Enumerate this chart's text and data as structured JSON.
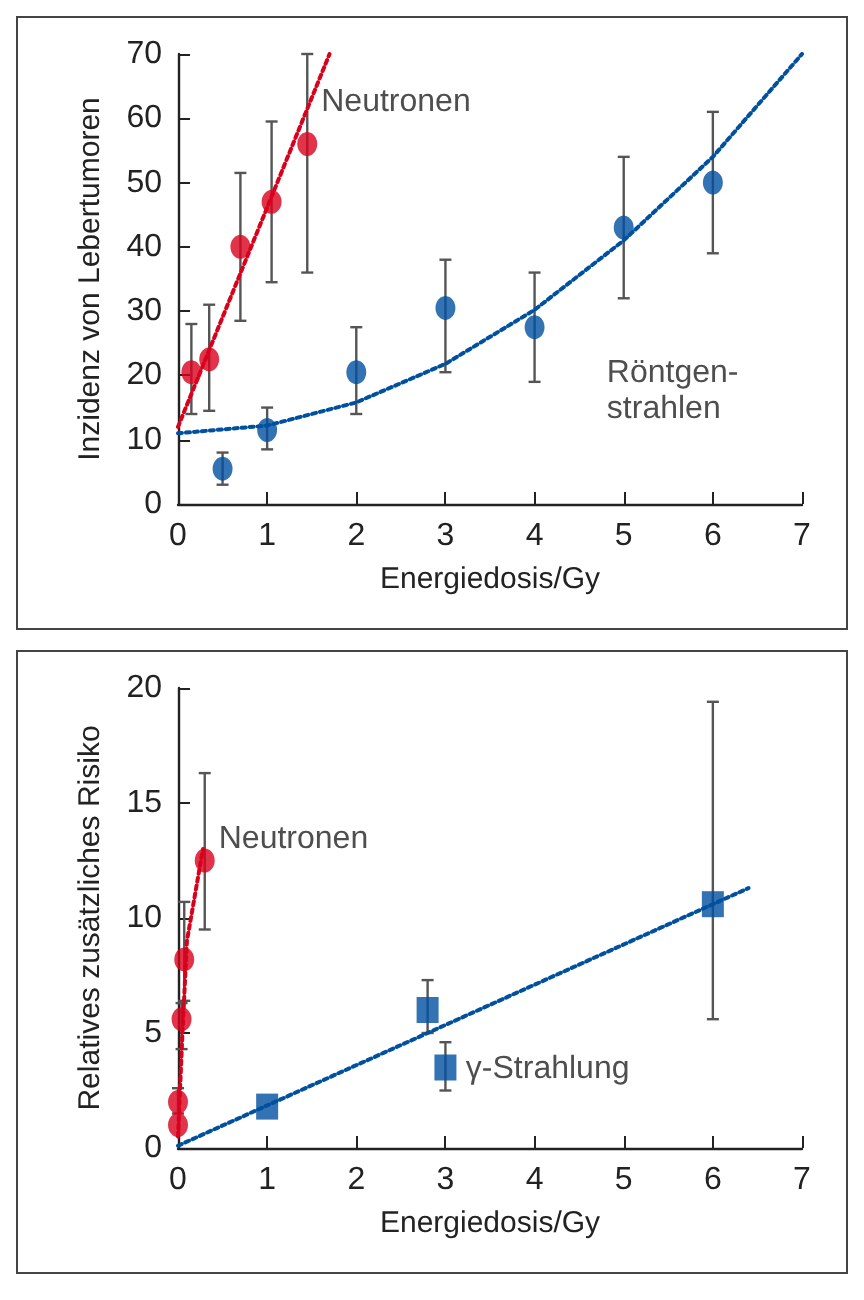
{
  "chart_data": [
    {
      "type": "scatter",
      "xlabel": "Energiedosis/Gy",
      "ylabel": "Inzidenz von Lebertumoren",
      "xlim": [
        0,
        7
      ],
      "ylim": [
        0,
        70
      ],
      "xticks": [
        0,
        1,
        2,
        3,
        4,
        5,
        6,
        7
      ],
      "yticks": [
        0,
        10,
        20,
        30,
        40,
        50,
        60,
        70
      ],
      "series": [
        {
          "type": "scatter",
          "name": "Neutronen",
          "color": "#d9001b",
          "marker": "circle",
          "x": [
            0.15,
            0.35,
            0.7,
            1.05,
            1.45
          ],
          "values": [
            20.5,
            22.5,
            40,
            47,
            56
          ],
          "errors": [
            [
              14,
              28
            ],
            [
              14.5,
              31
            ],
            [
              28.5,
              51.5
            ],
            [
              34.5,
              59.5
            ],
            [
              36,
              70
            ]
          ]
        },
        {
          "type": "scatter",
          "name": "Röntgen-\nstrahlen",
          "color": "#0050a0",
          "marker": "circle",
          "x": [
            0.5,
            1,
            2,
            3,
            4,
            5,
            6
          ],
          "values": [
            5.5,
            11.5,
            20.5,
            30.5,
            27.5,
            43,
            50
          ],
          "errors": [
            [
              3,
              8
            ],
            [
              8.5,
              15
            ],
            [
              14,
              27.5
            ],
            [
              20.5,
              38
            ],
            [
              19,
              36
            ],
            [
              32,
              54
            ],
            [
              39,
              61
            ]
          ]
        },
        {
          "type": "line",
          "color": "#d9001b",
          "marker": "none",
          "line_style": "dotted",
          "x": [
            0,
            1.7
          ],
          "values": [
            12,
            70
          ]
        },
        {
          "type": "line",
          "color": "#0050a0",
          "marker": "none",
          "line_style": "dotted",
          "x": [
            0,
            1,
            2,
            3,
            4,
            5,
            6,
            7
          ],
          "values": [
            11,
            12.2,
            15.8,
            21.8,
            30.2,
            41,
            54,
            70
          ]
        }
      ]
    },
    {
      "type": "scatter",
      "xlabel": "Energiedosis/Gy",
      "ylabel": "Relatives zusätzliches Risiko",
      "xlim": [
        0,
        7
      ],
      "ylim": [
        0,
        20
      ],
      "xticks": [
        0,
        1,
        2,
        3,
        4,
        5,
        6,
        7
      ],
      "yticks": [
        0,
        5,
        10,
        15,
        20
      ],
      "series": [
        {
          "type": "scatter",
          "name": "Neutronen",
          "color": "#d9001b",
          "marker": "circle",
          "x": [
            0,
            0,
            0.04,
            0.07,
            0.3
          ],
          "values": [
            1,
            2,
            5.6,
            8.2,
            12.5
          ],
          "errors": [
            null,
            [
              1.5,
              2.6
            ],
            [
              4.3,
              6.3
            ],
            [
              6.4,
              10.7
            ],
            [
              9.5,
              16.3
            ]
          ]
        },
        {
          "type": "scatter",
          "name": "γ-Strahlung",
          "color": "#0050a0",
          "marker": "square",
          "x": [
            1,
            2.8,
            3,
            6
          ],
          "values": [
            1.8,
            6,
            3.5,
            10.6
          ],
          "errors": [
            null,
            [
              5,
              7.3
            ],
            [
              2.5,
              4.6
            ],
            [
              5.6,
              19.4
            ]
          ]
        },
        {
          "type": "line",
          "color": "#d9001b",
          "marker": "none",
          "line_style": "dotted",
          "x": [
            0,
            0.05,
            0.1,
            0.28
          ],
          "values": [
            0.5,
            5,
            9,
            13
          ]
        },
        {
          "type": "line",
          "color": "#0050a0",
          "marker": "none",
          "line_style": "dotted",
          "x": [
            0,
            6.4
          ],
          "values": [
            0.1,
            11.3
          ]
        }
      ]
    }
  ]
}
